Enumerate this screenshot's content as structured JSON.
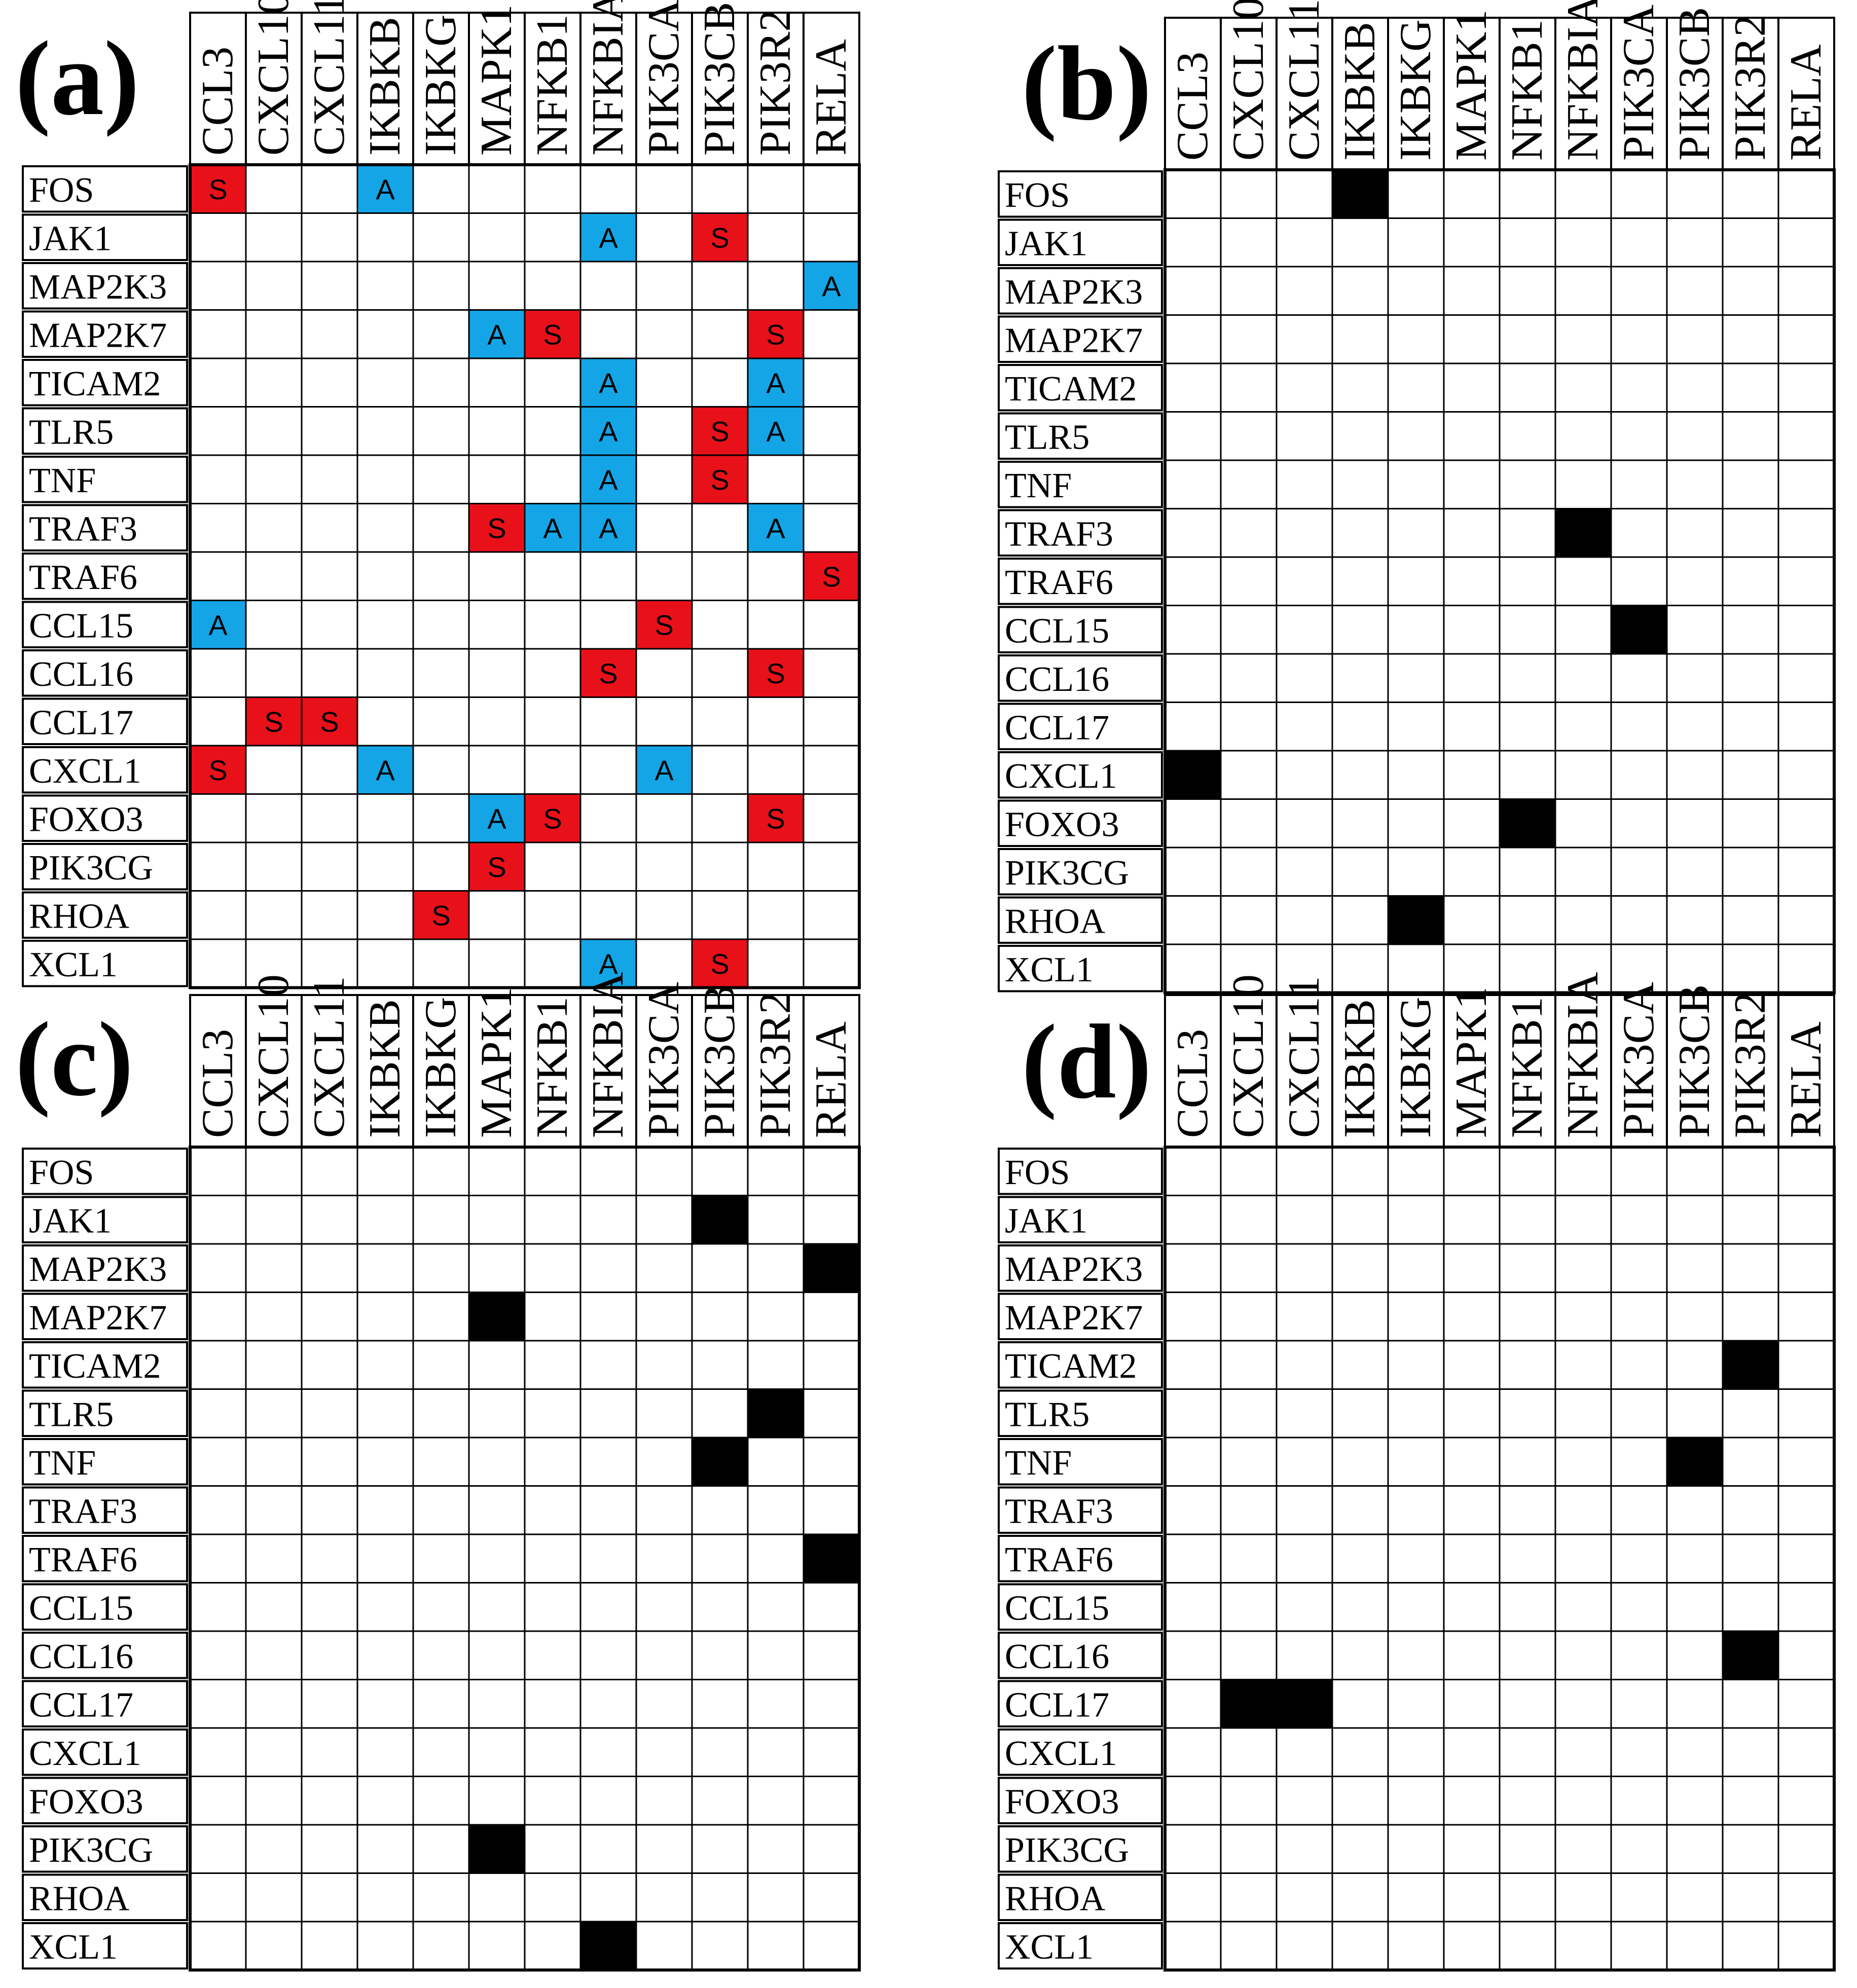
{
  "columns": [
    "CCL3",
    "CXCL10",
    "CXCL11",
    "IKBKB",
    "IKBKG",
    "MAPK1",
    "NFKB1",
    "NFKBIA",
    "PIK3CA",
    "PIK3CB",
    "PIK3R2",
    "RELA"
  ],
  "rows": [
    "FOS",
    "JAK1",
    "MAP2K3",
    "MAP2K7",
    "TICAM2",
    "TLR5",
    "TNF",
    "TRAF3",
    "TRAF6",
    "CCL15",
    "CCL16",
    "CCL17",
    "CXCL1",
    "FOXO3",
    "PIK3CG",
    "RHOA",
    "XCL1"
  ],
  "colors": {
    "S": "#e8111a",
    "A": "#14a5e6",
    "filled": "#000000",
    "grid": "#000000"
  },
  "panels": [
    {
      "id": "a",
      "label": "(a)",
      "cells": [
        {
          "row": "FOS",
          "col": "CCL3",
          "mark": "S"
        },
        {
          "row": "FOS",
          "col": "IKBKB",
          "mark": "A"
        },
        {
          "row": "JAK1",
          "col": "NFKBIA",
          "mark": "A"
        },
        {
          "row": "JAK1",
          "col": "PIK3CB",
          "mark": "S"
        },
        {
          "row": "MAP2K3",
          "col": "RELA",
          "mark": "A"
        },
        {
          "row": "MAP2K7",
          "col": "MAPK1",
          "mark": "A"
        },
        {
          "row": "MAP2K7",
          "col": "NFKB1",
          "mark": "S"
        },
        {
          "row": "MAP2K7",
          "col": "PIK3R2",
          "mark": "S"
        },
        {
          "row": "TICAM2",
          "col": "NFKBIA",
          "mark": "A"
        },
        {
          "row": "TICAM2",
          "col": "PIK3R2",
          "mark": "A"
        },
        {
          "row": "TLR5",
          "col": "NFKBIA",
          "mark": "A"
        },
        {
          "row": "TLR5",
          "col": "PIK3CB",
          "mark": "S"
        },
        {
          "row": "TLR5",
          "col": "PIK3R2",
          "mark": "A"
        },
        {
          "row": "TNF",
          "col": "NFKBIA",
          "mark": "A"
        },
        {
          "row": "TNF",
          "col": "PIK3CB",
          "mark": "S"
        },
        {
          "row": "TRAF3",
          "col": "MAPK1",
          "mark": "S"
        },
        {
          "row": "TRAF3",
          "col": "NFKB1",
          "mark": "A"
        },
        {
          "row": "TRAF3",
          "col": "NFKBIA",
          "mark": "A"
        },
        {
          "row": "TRAF3",
          "col": "PIK3R2",
          "mark": "A"
        },
        {
          "row": "TRAF6",
          "col": "RELA",
          "mark": "S"
        },
        {
          "row": "CCL15",
          "col": "CCL3",
          "mark": "A"
        },
        {
          "row": "CCL15",
          "col": "PIK3CA",
          "mark": "S"
        },
        {
          "row": "CCL16",
          "col": "NFKBIA",
          "mark": "S"
        },
        {
          "row": "CCL16",
          "col": "PIK3R2",
          "mark": "S"
        },
        {
          "row": "CCL17",
          "col": "CXCL10",
          "mark": "S"
        },
        {
          "row": "CCL17",
          "col": "CXCL11",
          "mark": "S"
        },
        {
          "row": "CXCL1",
          "col": "CCL3",
          "mark": "S"
        },
        {
          "row": "CXCL1",
          "col": "IKBKB",
          "mark": "A"
        },
        {
          "row": "CXCL1",
          "col": "PIK3CA",
          "mark": "A"
        },
        {
          "row": "FOXO3",
          "col": "MAPK1",
          "mark": "A"
        },
        {
          "row": "FOXO3",
          "col": "NFKB1",
          "mark": "S"
        },
        {
          "row": "FOXO3",
          "col": "PIK3R2",
          "mark": "S"
        },
        {
          "row": "PIK3CG",
          "col": "MAPK1",
          "mark": "S"
        },
        {
          "row": "RHOA",
          "col": "IKBKG",
          "mark": "S"
        },
        {
          "row": "XCL1",
          "col": "NFKBIA",
          "mark": "A"
        },
        {
          "row": "XCL1",
          "col": "PIK3CB",
          "mark": "S"
        }
      ]
    },
    {
      "id": "b",
      "label": "(b)",
      "cells": [
        {
          "row": "FOS",
          "col": "IKBKB",
          "mark": "filled"
        },
        {
          "row": "TRAF3",
          "col": "NFKBIA",
          "mark": "filled"
        },
        {
          "row": "CCL15",
          "col": "PIK3CA",
          "mark": "filled"
        },
        {
          "row": "CXCL1",
          "col": "CCL3",
          "mark": "filled"
        },
        {
          "row": "FOXO3",
          "col": "NFKB1",
          "mark": "filled"
        },
        {
          "row": "RHOA",
          "col": "IKBKG",
          "mark": "filled"
        }
      ]
    },
    {
      "id": "c",
      "label": "(c)",
      "cells": [
        {
          "row": "JAK1",
          "col": "PIK3CB",
          "mark": "filled"
        },
        {
          "row": "MAP2K3",
          "col": "RELA",
          "mark": "filled"
        },
        {
          "row": "MAP2K7",
          "col": "MAPK1",
          "mark": "filled"
        },
        {
          "row": "TLR5",
          "col": "PIK3R2",
          "mark": "filled"
        },
        {
          "row": "TNF",
          "col": "PIK3CB",
          "mark": "filled"
        },
        {
          "row": "TRAF6",
          "col": "RELA",
          "mark": "filled"
        },
        {
          "row": "PIK3CG",
          "col": "MAPK1",
          "mark": "filled"
        },
        {
          "row": "XCL1",
          "col": "NFKBIA",
          "mark": "filled"
        }
      ]
    },
    {
      "id": "d",
      "label": "(d)",
      "cells": [
        {
          "row": "TICAM2",
          "col": "PIK3R2",
          "mark": "filled"
        },
        {
          "row": "TNF",
          "col": "PIK3CB",
          "mark": "filled"
        },
        {
          "row": "CCL16",
          "col": "PIK3R2",
          "mark": "filled"
        },
        {
          "row": "CCL17",
          "col": "CXCL10",
          "mark": "filled"
        },
        {
          "row": "CCL17",
          "col": "CXCL11",
          "mark": "filled"
        }
      ]
    }
  ]
}
